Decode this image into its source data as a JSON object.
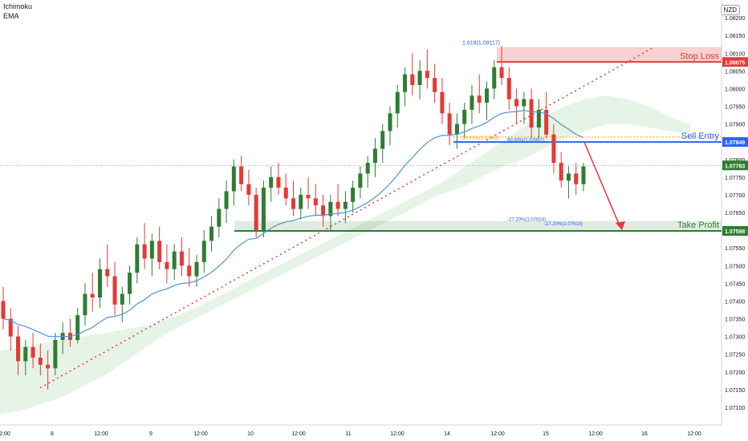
{
  "indicators": [
    "Ichimoku",
    "EMA"
  ],
  "currency": "NZD",
  "colors": {
    "up": "#2e7d32",
    "down": "#e53935",
    "ema": "#4f94d4",
    "sell": "#2962ff",
    "tp": "#2e7d32",
    "sl": "#e53935",
    "cloud": "#c8e6c9"
  },
  "chart_data": {
    "type": "candlestick",
    "title": "",
    "ylim": [
      1.0705,
      1.0825
    ],
    "y_ticks": [
      "1.07100",
      "1.07150",
      "1.07200",
      "1.07250",
      "1.07300",
      "1.07350",
      "1.07400",
      "1.07450",
      "1.07500",
      "1.07550",
      "1.07600",
      "1.07650",
      "1.07700",
      "1.07750",
      "1.07800",
      "1.07850",
      "1.07900",
      "1.07950",
      "1.08000",
      "1.08050",
      "1.08100",
      "1.08150",
      "1.08200"
    ],
    "x_ticks": [
      "2:00",
      "8",
      "12:00",
      "9",
      "12:00",
      "10",
      "12:00",
      "11",
      "12:00",
      "14",
      "12:00",
      "15",
      "12:00",
      "16",
      "12:00"
    ],
    "price_labels": {
      "stop_loss": "1.08075",
      "sell_entry": "1.07849",
      "current": "1.07783",
      "take_profit": "1.07598"
    },
    "levels": {
      "stop_loss": 1.08075,
      "sell_entry": 1.07849,
      "current": 1.07783,
      "take_profit": 1.07598
    },
    "annotations": {
      "stop_loss_text": "Stop Loss",
      "sell_entry_text": "Sell Entry",
      "take_profit_text": "Take Profit",
      "fib_ext_top": "1.618(1.08117)",
      "fib_50": "50.00%(1.07857)",
      "fib_50_left": "50.00%(1.07863)",
      "fib_ext_low": "-27.20%(1.07624)",
      "fib_ext_low2": "-27.20%(1.07618)"
    },
    "series": [
      {
        "name": "NZD",
        "candles": [
          [
            1.074,
            1.0744,
            1.0732,
            1.0735
          ],
          [
            1.0735,
            1.0738,
            1.0726,
            1.073
          ],
          [
            1.073,
            1.0733,
            1.0719,
            1.0723
          ],
          [
            1.0723,
            1.0729,
            1.0719,
            1.0727
          ],
          [
            1.0727,
            1.0731,
            1.0721,
            1.0724
          ],
          [
            1.0724,
            1.0728,
            1.0719,
            1.0722
          ],
          [
            1.0722,
            1.0726,
            1.0715,
            1.0721
          ],
          [
            1.0721,
            1.0731,
            1.0719,
            1.0729
          ],
          [
            1.0729,
            1.0734,
            1.0725,
            1.0731
          ],
          [
            1.0731,
            1.0735,
            1.0727,
            1.0729
          ],
          [
            1.0729,
            1.0738,
            1.0728,
            1.0736
          ],
          [
            1.0736,
            1.0745,
            1.0733,
            1.0742
          ],
          [
            1.0742,
            1.0748,
            1.0737,
            1.0741
          ],
          [
            1.0741,
            1.0752,
            1.0738,
            1.0749
          ],
          [
            1.0749,
            1.0756,
            1.0744,
            1.0747
          ],
          [
            1.0747,
            1.0751,
            1.0736,
            1.0739
          ],
          [
            1.0739,
            1.0744,
            1.0734,
            1.0742
          ],
          [
            1.0742,
            1.075,
            1.0739,
            1.0748
          ],
          [
            1.0748,
            1.0758,
            1.0745,
            1.0756
          ],
          [
            1.0756,
            1.0762,
            1.0749,
            1.0752
          ],
          [
            1.0752,
            1.0759,
            1.0747,
            1.0757
          ],
          [
            1.0757,
            1.0761,
            1.0749,
            1.0751
          ],
          [
            1.0751,
            1.0756,
            1.0745,
            1.0749
          ],
          [
            1.0749,
            1.0756,
            1.0746,
            1.0754
          ],
          [
            1.0754,
            1.0758,
            1.0747,
            1.075
          ],
          [
            1.075,
            1.0755,
            1.0744,
            1.0747
          ],
          [
            1.0747,
            1.0753,
            1.0744,
            1.0751
          ],
          [
            1.0751,
            1.076,
            1.0748,
            1.0757
          ],
          [
            1.0757,
            1.0764,
            1.0754,
            1.0761
          ],
          [
            1.0761,
            1.0769,
            1.0758,
            1.0766
          ],
          [
            1.0766,
            1.0774,
            1.0762,
            1.0771
          ],
          [
            1.0771,
            1.078,
            1.0767,
            1.0778
          ],
          [
            1.0778,
            1.0781,
            1.0771,
            1.0773
          ],
          [
            1.0773,
            1.0777,
            1.0767,
            1.077
          ],
          [
            1.077,
            1.0772,
            1.0758,
            1.076
          ],
          [
            1.076,
            1.0774,
            1.0758,
            1.0772
          ],
          [
            1.0772,
            1.0778,
            1.0768,
            1.0775
          ],
          [
            1.0775,
            1.0779,
            1.077,
            1.0772
          ],
          [
            1.0772,
            1.0776,
            1.0767,
            1.0769
          ],
          [
            1.0769,
            1.0774,
            1.0764,
            1.0766
          ],
          [
            1.0766,
            1.0772,
            1.0763,
            1.077
          ],
          [
            1.077,
            1.0775,
            1.0766,
            1.0769
          ],
          [
            1.0769,
            1.0773,
            1.0764,
            1.0767
          ],
          [
            1.0767,
            1.077,
            1.0761,
            1.0764
          ],
          [
            1.0764,
            1.077,
            1.076,
            1.0768
          ],
          [
            1.0768,
            1.0773,
            1.0764,
            1.0766
          ],
          [
            1.0766,
            1.0771,
            1.0762,
            1.0768
          ],
          [
            1.0768,
            1.0774,
            1.0765,
            1.0772
          ],
          [
            1.0772,
            1.0778,
            1.0769,
            1.0776
          ],
          [
            1.0776,
            1.0781,
            1.0772,
            1.0779
          ],
          [
            1.0779,
            1.0786,
            1.0775,
            1.0783
          ],
          [
            1.0783,
            1.079,
            1.0779,
            1.0788
          ],
          [
            1.0788,
            1.0795,
            1.0784,
            1.0793
          ],
          [
            1.0793,
            1.0801,
            1.0789,
            1.0799
          ],
          [
            1.0799,
            1.0806,
            1.0795,
            1.0804
          ],
          [
            1.0804,
            1.081,
            1.0798,
            1.0801
          ],
          [
            1.0801,
            1.0808,
            1.0797,
            1.0805
          ],
          [
            1.0805,
            1.0811,
            1.08,
            1.0803
          ],
          [
            1.0803,
            1.0807,
            1.0796,
            1.0799
          ],
          [
            1.0799,
            1.0803,
            1.079,
            1.0793
          ],
          [
            1.0793,
            1.0796,
            1.0784,
            1.0787
          ],
          [
            1.0787,
            1.0793,
            1.0783,
            1.079
          ],
          [
            1.079,
            1.0796,
            1.0786,
            1.0794
          ],
          [
            1.0794,
            1.0801,
            1.079,
            1.0798
          ],
          [
            1.0798,
            1.0804,
            1.0793,
            1.0796
          ],
          [
            1.0796,
            1.0802,
            1.0791,
            1.08
          ],
          [
            1.08,
            1.0808,
            1.0797,
            1.0806
          ],
          [
            1.0806,
            1.0812,
            1.0801,
            1.0803
          ],
          [
            1.0803,
            1.0806,
            1.0794,
            1.0797
          ],
          [
            1.0797,
            1.08,
            1.079,
            1.0795
          ],
          [
            1.0795,
            1.0799,
            1.079,
            1.0797
          ],
          [
            1.0797,
            1.08,
            1.0786,
            1.0789
          ],
          [
            1.0789,
            1.0797,
            1.0786,
            1.0794
          ],
          [
            1.0794,
            1.0799,
            1.0786,
            1.0787
          ],
          [
            1.0787,
            1.079,
            1.0776,
            1.0779
          ],
          [
            1.0779,
            1.0782,
            1.0772,
            1.0774
          ],
          [
            1.0774,
            1.0778,
            1.0769,
            1.0776
          ],
          [
            1.0776,
            1.0779,
            1.077,
            1.0773
          ],
          [
            1.0773,
            1.0779,
            1.0771,
            1.0778
          ]
        ]
      }
    ]
  }
}
